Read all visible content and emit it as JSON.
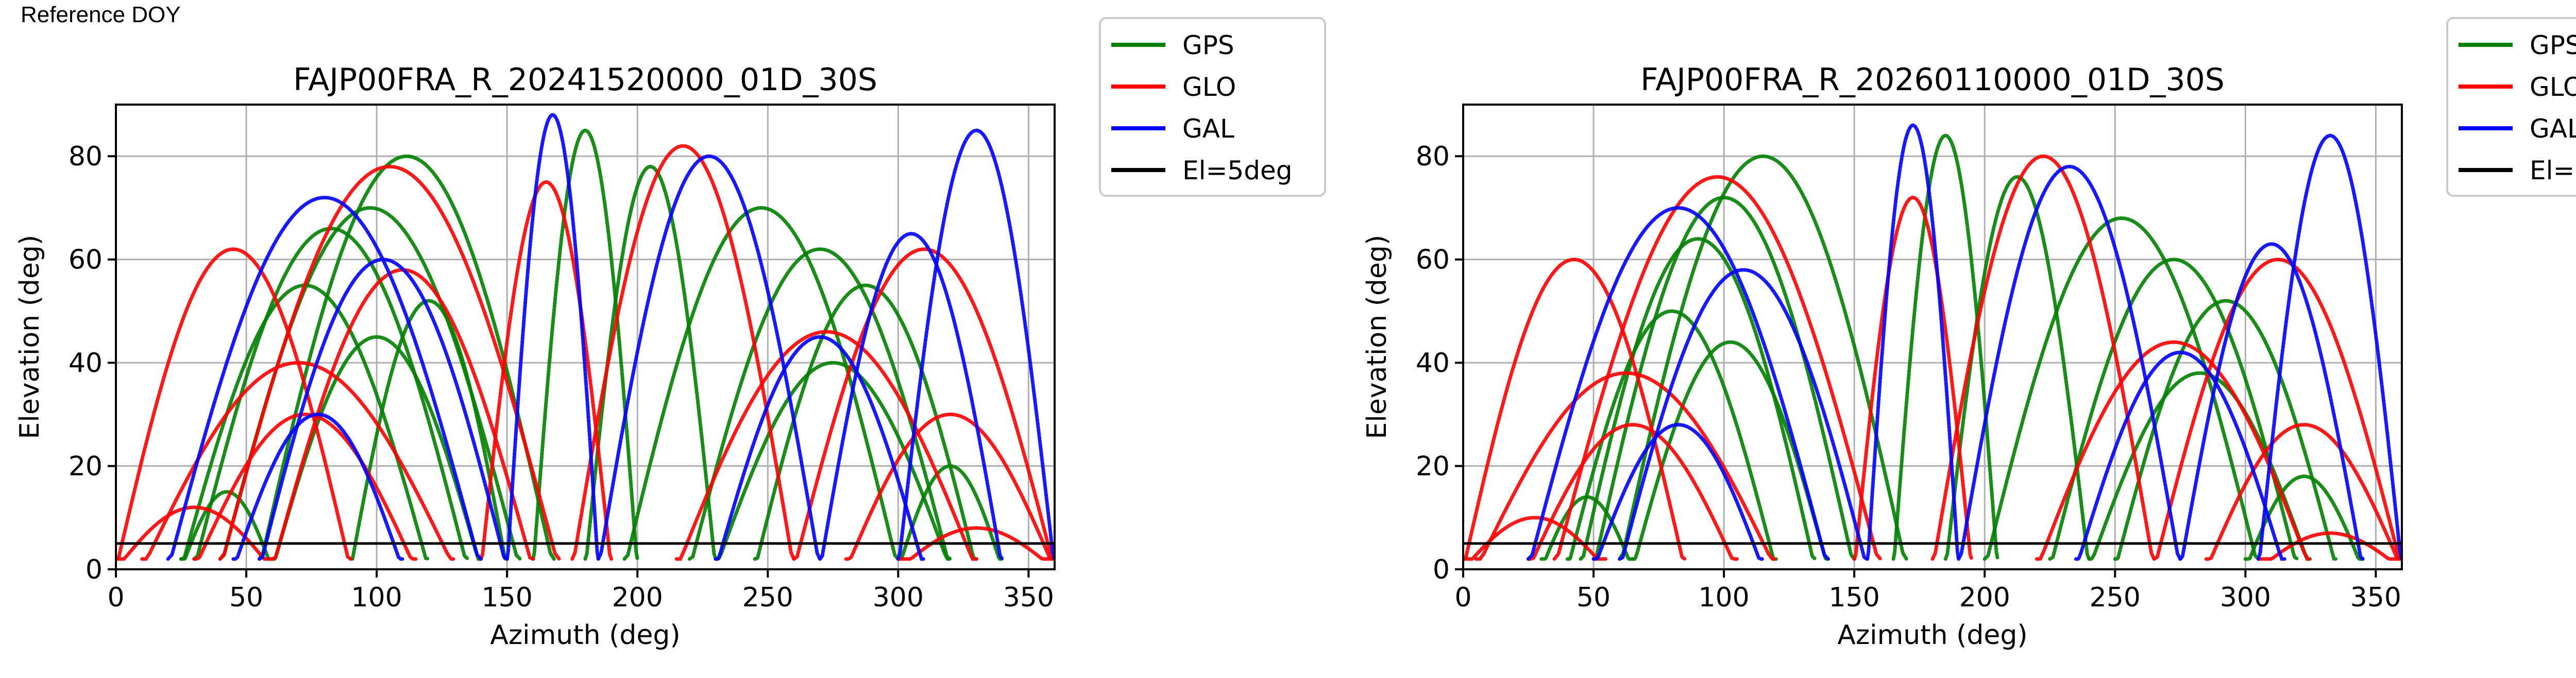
{
  "header": {
    "note": "Reference DOY"
  },
  "legend": {
    "entries": [
      {
        "label": "GPS",
        "color": "#008000"
      },
      {
        "label": "GLO",
        "color": "#ff0000"
      },
      {
        "label": "GAL",
        "color": "#0000ff"
      },
      {
        "label": "El=5deg",
        "color": "#000000"
      }
    ]
  },
  "chart_data": [
    {
      "type": "scatter",
      "title": "FAJP00FRA_R_20241520000_01D_30S",
      "xlabel": "Azimuth (deg)",
      "ylabel": "Elevation (deg)",
      "xlim": [
        0,
        360
      ],
      "ylim": [
        0,
        90
      ],
      "xticks": [
        0,
        50,
        100,
        150,
        200,
        250,
        300,
        350
      ],
      "yticks": [
        0,
        20,
        40,
        60,
        80
      ],
      "grid": true,
      "legend_position": "outside-right",
      "reference_line": {
        "name": "El=5deg",
        "y": 5,
        "color": "#000000"
      },
      "series": [
        {
          "name": "GPS",
          "color": "#008000",
          "arcs": [
            {
              "start": 25,
              "end": 120,
              "peak": 55
            },
            {
              "start": 30,
              "end": 135,
              "peak": 66
            },
            {
              "start": 40,
              "end": 155,
              "peak": 70
            },
            {
              "start": 55,
              "end": 168,
              "peak": 80
            },
            {
              "start": 160,
              "end": 200,
              "peak": 85
            },
            {
              "start": 180,
              "end": 230,
              "peak": 78
            },
            {
              "start": 195,
              "end": 300,
              "peak": 70
            },
            {
              "start": 220,
              "end": 320,
              "peak": 62
            },
            {
              "start": 245,
              "end": 330,
              "peak": 55
            },
            {
              "start": 230,
              "end": 320,
              "peak": 40
            },
            {
              "start": 300,
              "end": 340,
              "peak": 20
            },
            {
              "start": 25,
              "end": 60,
              "peak": 15
            },
            {
              "start": 60,
              "end": 140,
              "peak": 45
            },
            {
              "start": 90,
              "end": 150,
              "peak": 52
            }
          ]
        },
        {
          "name": "GLO",
          "color": "#ff0000",
          "arcs": [
            {
              "start": 0,
              "end": 90,
              "peak": 62
            },
            {
              "start": 10,
              "end": 130,
              "peak": 40
            },
            {
              "start": 30,
              "end": 115,
              "peak": 30
            },
            {
              "start": 40,
              "end": 170,
              "peak": 78
            },
            {
              "start": 140,
              "end": 190,
              "peak": 75
            },
            {
              "start": 175,
              "end": 260,
              "peak": 82
            },
            {
              "start": 215,
              "end": 330,
              "peak": 46
            },
            {
              "start": 260,
              "end": 360,
              "peak": 62
            },
            {
              "start": 280,
              "end": 360,
              "peak": 30
            },
            {
              "start": 0,
              "end": 60,
              "peak": 12
            },
            {
              "start": 300,
              "end": 360,
              "peak": 8
            },
            {
              "start": 60,
              "end": 160,
              "peak": 58
            }
          ]
        },
        {
          "name": "GAL",
          "color": "#0000ff",
          "arcs": [
            {
              "start": 20,
              "end": 140,
              "peak": 72
            },
            {
              "start": 45,
              "end": 110,
              "peak": 30
            },
            {
              "start": 55,
              "end": 150,
              "peak": 60
            },
            {
              "start": 150,
              "end": 185,
              "peak": 88
            },
            {
              "start": 185,
              "end": 270,
              "peak": 80
            },
            {
              "start": 230,
              "end": 310,
              "peak": 45
            },
            {
              "start": 270,
              "end": 340,
              "peak": 65
            },
            {
              "start": 300,
              "end": 360,
              "peak": 85
            }
          ]
        }
      ]
    },
    {
      "type": "scatter",
      "title": "FAJP00FRA_R_20260110000_01D_30S",
      "xlabel": "Azimuth (deg)",
      "ylabel": "Elevation (deg)",
      "xlim": [
        0,
        360
      ],
      "ylim": [
        0,
        90
      ],
      "xticks": [
        0,
        50,
        100,
        150,
        200,
        250,
        300,
        350
      ],
      "yticks": [
        0,
        20,
        40,
        60,
        80
      ],
      "grid": true,
      "legend_position": "outside-right",
      "reference_line": {
        "name": "El=5deg",
        "y": 5,
        "color": "#000000"
      },
      "series": [
        {
          "name": "GPS",
          "color": "#008000",
          "arcs": [
            {
              "start": 40,
              "end": 120,
              "peak": 50
            },
            {
              "start": 45,
              "end": 135,
              "peak": 64
            },
            {
              "start": 50,
              "end": 150,
              "peak": 72
            },
            {
              "start": 60,
              "end": 170,
              "peak": 80
            },
            {
              "start": 165,
              "end": 205,
              "peak": 84
            },
            {
              "start": 185,
              "end": 240,
              "peak": 76
            },
            {
              "start": 200,
              "end": 305,
              "peak": 68
            },
            {
              "start": 225,
              "end": 320,
              "peak": 60
            },
            {
              "start": 250,
              "end": 335,
              "peak": 52
            },
            {
              "start": 240,
              "end": 325,
              "peak": 38
            },
            {
              "start": 300,
              "end": 345,
              "peak": 18
            },
            {
              "start": 30,
              "end": 65,
              "peak": 14
            },
            {
              "start": 65,
              "end": 140,
              "peak": 44
            }
          ]
        },
        {
          "name": "GLO",
          "color": "#ff0000",
          "arcs": [
            {
              "start": 0,
              "end": 85,
              "peak": 60
            },
            {
              "start": 5,
              "end": 120,
              "peak": 38
            },
            {
              "start": 25,
              "end": 105,
              "peak": 28
            },
            {
              "start": 35,
              "end": 160,
              "peak": 76
            },
            {
              "start": 150,
              "end": 195,
              "peak": 72
            },
            {
              "start": 180,
              "end": 265,
              "peak": 80
            },
            {
              "start": 220,
              "end": 325,
              "peak": 44
            },
            {
              "start": 265,
              "end": 360,
              "peak": 60
            },
            {
              "start": 285,
              "end": 360,
              "peak": 28
            },
            {
              "start": 0,
              "end": 55,
              "peak": 10
            },
            {
              "start": 305,
              "end": 360,
              "peak": 7
            }
          ]
        },
        {
          "name": "GAL",
          "color": "#0000ff",
          "arcs": [
            {
              "start": 25,
              "end": 140,
              "peak": 70
            },
            {
              "start": 50,
              "end": 115,
              "peak": 28
            },
            {
              "start": 60,
              "end": 155,
              "peak": 58
            },
            {
              "start": 155,
              "end": 190,
              "peak": 86
            },
            {
              "start": 190,
              "end": 275,
              "peak": 78
            },
            {
              "start": 235,
              "end": 315,
              "peak": 42
            },
            {
              "start": 275,
              "end": 345,
              "peak": 63
            },
            {
              "start": 305,
              "end": 360,
              "peak": 84
            }
          ]
        }
      ]
    }
  ]
}
